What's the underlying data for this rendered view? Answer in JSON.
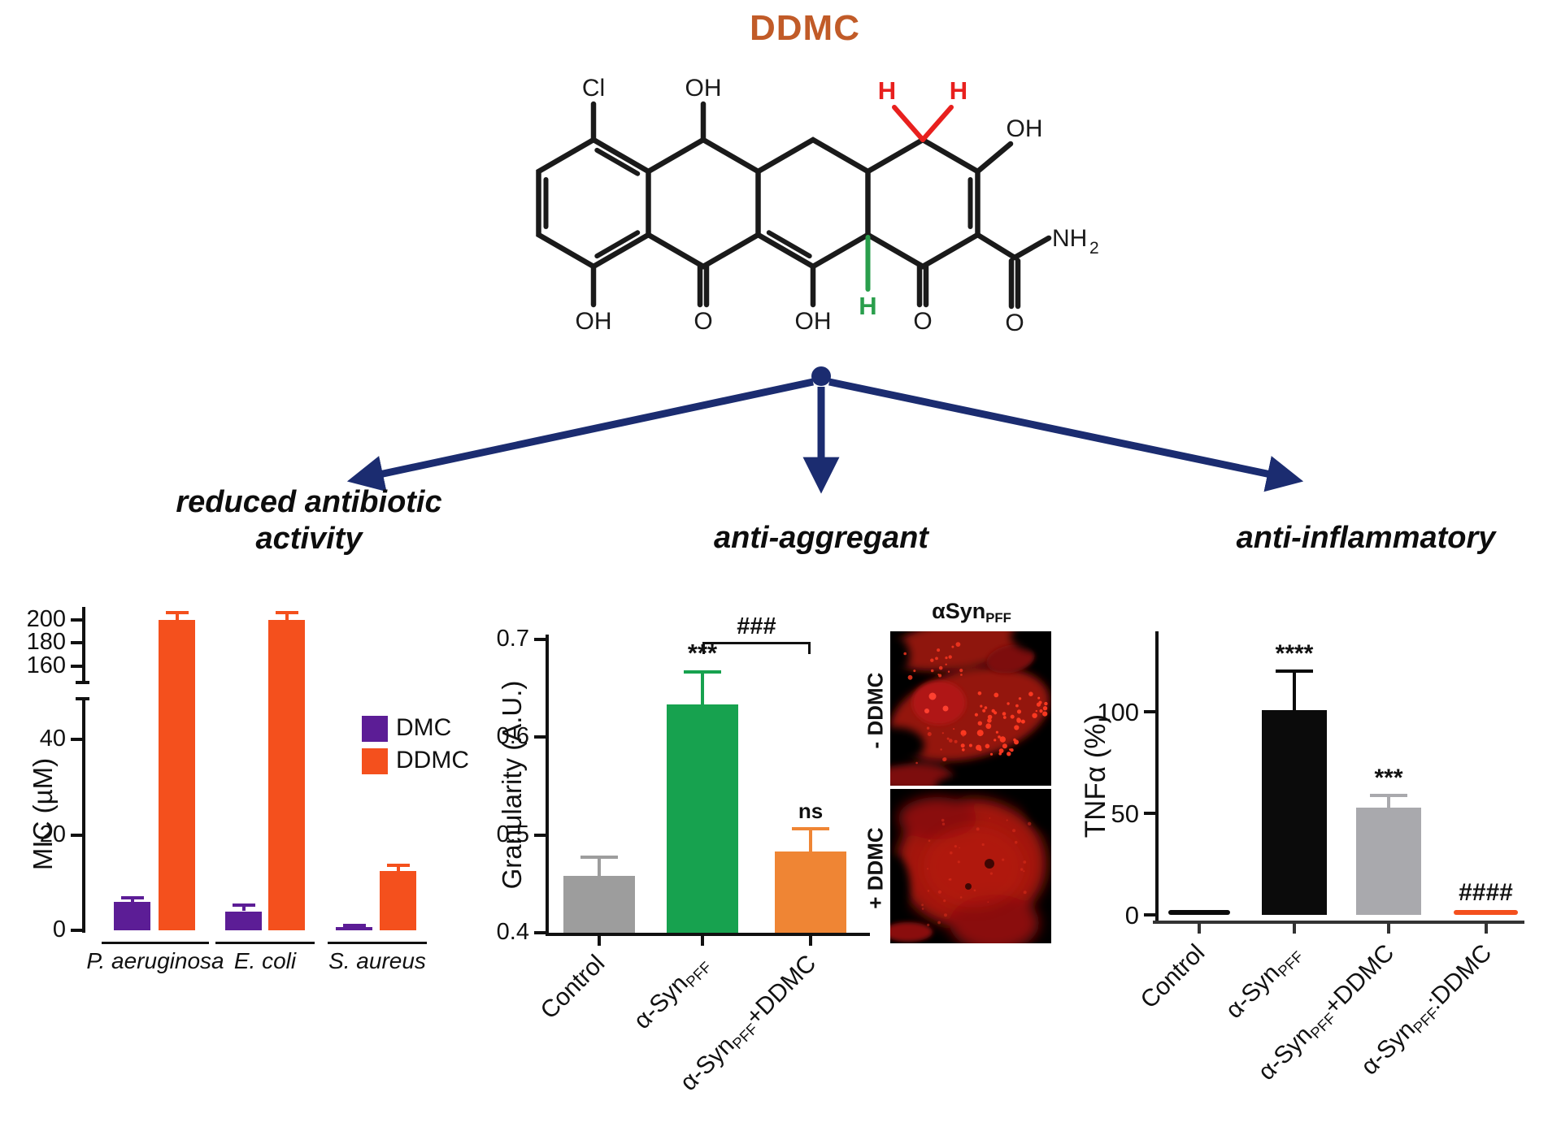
{
  "page_title": "DDMC",
  "title_color": "#c15b28",
  "arrow_color": "#1b2c70",
  "molecule": {
    "labels": {
      "cl": "Cl",
      "oh_top_b": "OH",
      "h_red_left": "H",
      "h_red_right": "H",
      "oh_top_d": "OH",
      "nh": "NH",
      "nh_sub": "2",
      "o_amide": "O",
      "oh_bottom_a": "OH",
      "o_bottom_b": "O",
      "oh_bottom_c": "OH",
      "h_green": "H",
      "o_bottom_d": "O"
    },
    "colors": {
      "skeleton": "#1a1a1a",
      "red_h": "#e8201e",
      "green_h": "#2a9e4c"
    }
  },
  "branches": {
    "left": {
      "line1": "reduced antibiotic",
      "line2": "activity"
    },
    "middle": {
      "line1": "anti-aggregant"
    },
    "right": {
      "line1": "anti-inflammatory"
    }
  },
  "micrographs": {
    "title_base": "αSyn",
    "title_sub": "PFF",
    "top_label": "- DDMC",
    "bottom_label": "+ DDMC"
  },
  "chart_data": [
    {
      "type": "bar",
      "panel": "reduced antibiotic activity",
      "ylabel": "MIC (µM)",
      "categories": [
        "P. aeruginosa",
        "E. coli",
        "S. aureus"
      ],
      "series": [
        {
          "name": "DMC",
          "color": "#5c1d96",
          "values": [
            6,
            4,
            0.7
          ],
          "errors": [
            0.8,
            1.3,
            0.4
          ]
        },
        {
          "name": "DDMC",
          "color": "#f4501d",
          "values": [
            200,
            200,
            12.5
          ],
          "errors": [
            6,
            6,
            1.2
          ]
        }
      ],
      "y_axis_break": {
        "lower_ticks": [
          0,
          20,
          40
        ],
        "upper_ticks": [
          160,
          180,
          200
        ],
        "lower_range": [
          0,
          49
        ],
        "upper_range": [
          146,
          213
        ]
      },
      "legend_position": "right",
      "grid": false
    },
    {
      "type": "bar",
      "panel": "anti-aggregant",
      "ylabel": "Granularity (A.U.)",
      "categories": [
        {
          "pre": "Control"
        },
        {
          "pre": "α-Syn",
          "sub": "PFF"
        },
        {
          "pre": "α-Syn",
          "sub": "PFF",
          "post": "+DDMC"
        }
      ],
      "values": [
        0.458,
        0.633,
        0.483
      ],
      "errors": [
        0.019,
        0.033,
        0.023
      ],
      "colors": [
        "#9d9d9d",
        "#17a24f",
        "#ef8534"
      ],
      "annotations": [
        "",
        "***",
        "ns"
      ],
      "comparison": {
        "label": "###",
        "from": 1,
        "to": 2
      },
      "ylim": [
        0.4,
        0.7
      ],
      "yticks": [
        0.4,
        0.5,
        0.6,
        0.7
      ],
      "grid": false
    },
    {
      "type": "bar",
      "panel": "anti-inflammatory",
      "ylabel": "TNFα (%)",
      "categories": [
        {
          "pre": "Control"
        },
        {
          "pre": "α-Syn",
          "sub": "PFF"
        },
        {
          "pre": "α-Syn",
          "sub": "PFF",
          "post": "+DDMC"
        },
        {
          "pre": "α-Syn",
          "sub": "PFF",
          "post": ":DDMC"
        }
      ],
      "values": [
        0.5,
        101,
        53,
        2
      ],
      "errors": [
        0,
        19,
        6,
        0
      ],
      "colors": [
        "#0b0b0b",
        "#0b0b0b",
        "#a9a9ad",
        "#f4501d"
      ],
      "annotations": [
        "",
        "****",
        "***",
        "####"
      ],
      "ylim": [
        0,
        135
      ],
      "yticks": [
        0,
        50,
        100
      ],
      "grid": false
    }
  ]
}
